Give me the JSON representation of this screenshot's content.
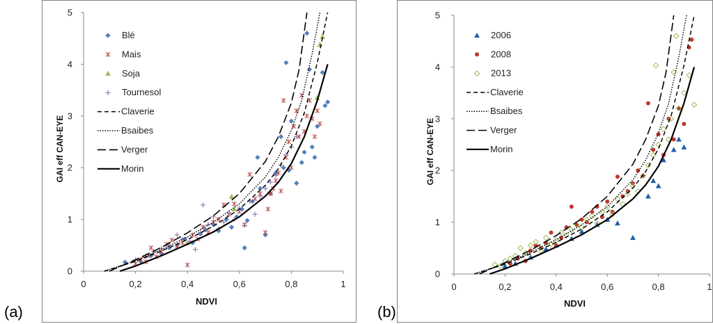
{
  "panels": [
    {
      "label": "(a)"
    },
    {
      "label": "(b)"
    }
  ],
  "chart_data": [
    {
      "type": "scatter",
      "title": "",
      "xlabel": "NDVI",
      "ylabel": "GAI eff CAN-EYE",
      "xlim": [
        0,
        1
      ],
      "ylim": [
        0,
        5
      ],
      "x_ticks": [
        "0",
        "0,2",
        "0,4",
        "0,6",
        "0,8",
        "1"
      ],
      "y_ticks": [
        "0",
        "1",
        "2",
        "3",
        "4",
        "5"
      ],
      "grid": false,
      "legend_position": "top-left",
      "series": [
        {
          "name": "Blé",
          "marker": "diamond",
          "color": "#4f81bd",
          "x": [
            0.16,
            0.22,
            0.26,
            0.3,
            0.33,
            0.36,
            0.39,
            0.42,
            0.45,
            0.47,
            0.5,
            0.52,
            0.55,
            0.57,
            0.59,
            0.61,
            0.62,
            0.63,
            0.65,
            0.67,
            0.68,
            0.7,
            0.72,
            0.74,
            0.76,
            0.77,
            0.78,
            0.79,
            0.8,
            0.82,
            0.84,
            0.85,
            0.86,
            0.87,
            0.88,
            0.89,
            0.9,
            0.92,
            0.93,
            0.94
          ],
          "y": [
            0.17,
            0.19,
            0.3,
            0.34,
            0.45,
            0.5,
            0.62,
            0.55,
            0.72,
            0.8,
            0.9,
            0.78,
            1.0,
            0.85,
            1.05,
            1.2,
            0.45,
            0.98,
            1.35,
            2.2,
            1.6,
            0.7,
            1.5,
            1.9,
            2.6,
            2.0,
            4.03,
            1.95,
            2.9,
            1.7,
            2.1,
            2.3,
            4.6,
            3.9,
            2.4,
            2.2,
            2.8,
            3.84,
            3.2,
            3.27
          ]
        },
        {
          "name": "Mais",
          "marker": "x",
          "color": "#c0504d",
          "x": [
            0.2,
            0.22,
            0.24,
            0.25,
            0.26,
            0.28,
            0.3,
            0.32,
            0.34,
            0.36,
            0.38,
            0.4,
            0.42,
            0.44,
            0.46,
            0.48,
            0.5,
            0.52,
            0.54,
            0.56,
            0.58,
            0.6,
            0.62,
            0.64,
            0.66,
            0.68,
            0.7,
            0.71,
            0.72,
            0.73,
            0.74,
            0.75,
            0.76,
            0.77,
            0.78,
            0.79,
            0.8,
            0.81,
            0.82,
            0.83,
            0.84,
            0.85,
            0.86,
            0.87,
            0.88,
            0.89,
            0.9,
            0.91
          ],
          "y": [
            0.15,
            0.22,
            0.18,
            0.3,
            0.45,
            0.28,
            0.38,
            0.52,
            0.6,
            0.48,
            0.55,
            0.12,
            0.7,
            0.62,
            0.85,
            0.75,
            0.95,
            1.0,
            1.28,
            1.1,
            1.3,
            1.15,
            0.9,
            1.87,
            1.4,
            1.5,
            0.75,
            1.2,
            1.5,
            1.6,
            1.75,
            1.9,
            1.55,
            3.3,
            2.2,
            2.5,
            2.0,
            2.8,
            3.1,
            2.6,
            3.4,
            2.7,
            3.0,
            3.3,
            2.95,
            2.6,
            3.1,
            2.85
          ]
        },
        {
          "name": "Soja",
          "marker": "triangle",
          "color": "#9bbb59",
          "x": [
            0.4,
            0.57,
            0.58,
            0.9,
            0.91,
            0.92
          ],
          "y": [
            0.55,
            1.44,
            1.2,
            3.35,
            4.38,
            4.53
          ]
        },
        {
          "name": "Tournesol",
          "marker": "plus",
          "color": "#8064a2",
          "x": [
            0.16,
            0.2,
            0.24,
            0.27,
            0.3,
            0.33,
            0.36,
            0.38,
            0.41,
            0.43,
            0.45,
            0.46,
            0.48,
            0.5,
            0.52,
            0.54,
            0.56,
            0.58,
            0.6,
            0.62,
            0.64,
            0.66,
            0.68,
            0.7,
            0.72,
            0.74,
            0.76,
            0.78,
            0.8,
            0.82
          ],
          "y": [
            0.18,
            0.22,
            0.28,
            0.38,
            0.44,
            0.5,
            0.7,
            0.62,
            0.58,
            0.42,
            0.75,
            1.28,
            0.9,
            1.05,
            0.82,
            0.95,
            1.12,
            1.0,
            1.22,
            0.88,
            1.35,
            1.1,
            1.45,
            1.6,
            1.72,
            1.85,
            2.05,
            2.25,
            2.4,
            2.6
          ]
        }
      ],
      "curves": [
        {
          "name": "Claverie",
          "dash": "short-dash",
          "x": [
            0.08,
            0.2,
            0.3,
            0.4,
            0.5,
            0.6,
            0.7,
            0.75,
            0.8,
            0.85,
            0.9,
            0.94
          ],
          "y": [
            0.0,
            0.19,
            0.39,
            0.61,
            0.87,
            1.2,
            1.66,
            1.98,
            2.42,
            3.06,
            4.03,
            5.0
          ]
        },
        {
          "name": "Bsaibes",
          "dash": "dotted",
          "x": [
            0.08,
            0.2,
            0.3,
            0.4,
            0.5,
            0.6,
            0.7,
            0.75,
            0.8,
            0.84,
            0.88,
            0.91
          ],
          "y": [
            0.0,
            0.2,
            0.42,
            0.66,
            0.95,
            1.3,
            1.82,
            2.2,
            2.72,
            3.3,
            4.2,
            5.0
          ]
        },
        {
          "name": "Verger",
          "dash": "long-dash",
          "x": [
            0.1,
            0.2,
            0.3,
            0.4,
            0.5,
            0.6,
            0.7,
            0.75,
            0.8,
            0.83,
            0.86
          ],
          "y": [
            0.0,
            0.22,
            0.46,
            0.74,
            1.07,
            1.5,
            2.12,
            2.6,
            3.25,
            3.9,
            5.0
          ]
        },
        {
          "name": "Morin",
          "dash": "solid",
          "x": [
            0.14,
            0.2,
            0.3,
            0.4,
            0.5,
            0.6,
            0.7,
            0.75,
            0.8,
            0.85,
            0.9,
            0.94
          ],
          "y": [
            0.0,
            0.1,
            0.3,
            0.52,
            0.76,
            1.05,
            1.45,
            1.72,
            2.08,
            2.6,
            3.3,
            4.0
          ]
        }
      ]
    },
    {
      "type": "scatter",
      "title": "",
      "xlabel": "NDVI",
      "ylabel": "GAI eff CAN-EYE",
      "xlim": [
        0,
        1
      ],
      "ylim": [
        0,
        5
      ],
      "x_ticks": [
        "0",
        "0,2",
        "0,4",
        "0,6",
        "0,8",
        "1"
      ],
      "y_ticks": [
        "0",
        "1",
        "2",
        "3",
        "4",
        "5"
      ],
      "grid": false,
      "legend_position": "top-left",
      "series": [
        {
          "name": "2006",
          "marker": "triangle",
          "color": "#1f5fa8",
          "x": [
            0.2,
            0.24,
            0.3,
            0.36,
            0.4,
            0.46,
            0.5,
            0.56,
            0.6,
            0.64,
            0.7,
            0.76,
            0.78,
            0.8,
            0.82,
            0.86,
            0.88,
            0.9
          ],
          "y": [
            0.15,
            0.2,
            0.32,
            0.48,
            0.55,
            0.68,
            0.82,
            0.95,
            1.05,
            0.98,
            0.7,
            1.5,
            1.8,
            1.7,
            2.2,
            2.4,
            2.6,
            2.45
          ]
        },
        {
          "name": "2008",
          "marker": "circle",
          "color": "#c0392b",
          "x": [
            0.22,
            0.25,
            0.28,
            0.3,
            0.32,
            0.34,
            0.36,
            0.38,
            0.4,
            0.42,
            0.44,
            0.46,
            0.48,
            0.5,
            0.52,
            0.54,
            0.56,
            0.58,
            0.6,
            0.62,
            0.64,
            0.66,
            0.68,
            0.7,
            0.72,
            0.74,
            0.76,
            0.78,
            0.8,
            0.82,
            0.84,
            0.86,
            0.88,
            0.9,
            0.92,
            0.93
          ],
          "y": [
            0.2,
            0.3,
            0.25,
            0.45,
            0.55,
            0.5,
            0.6,
            0.8,
            0.55,
            0.7,
            0.9,
            1.3,
            0.95,
            1.05,
            1.0,
            1.2,
            1.3,
            1.1,
            1.4,
            1.2,
            1.88,
            1.5,
            1.6,
            1.75,
            2.0,
            1.9,
            3.3,
            2.4,
            2.7,
            2.3,
            3.0,
            2.6,
            3.2,
            2.9,
            4.38,
            4.53
          ]
        },
        {
          "name": "2013",
          "marker": "open-diamond",
          "color": "#9bbb59",
          "x": [
            0.16,
            0.18,
            0.2,
            0.22,
            0.24,
            0.26,
            0.28,
            0.3,
            0.32,
            0.34,
            0.36,
            0.38,
            0.4,
            0.42,
            0.44,
            0.46,
            0.48,
            0.5,
            0.52,
            0.54,
            0.56,
            0.58,
            0.6,
            0.62,
            0.64,
            0.66,
            0.68,
            0.7,
            0.72,
            0.74,
            0.76,
            0.78,
            0.79,
            0.8,
            0.82,
            0.84,
            0.85,
            0.86,
            0.87,
            0.88,
            0.9,
            0.92,
            0.94
          ],
          "y": [
            0.18,
            0.15,
            0.25,
            0.3,
            0.35,
            0.5,
            0.4,
            0.55,
            0.62,
            0.45,
            0.7,
            0.58,
            0.65,
            0.8,
            0.75,
            0.85,
            0.95,
            0.9,
            1.05,
            1.12,
            0.98,
            1.2,
            1.3,
            1.15,
            1.45,
            1.35,
            1.55,
            1.7,
            1.6,
            1.9,
            2.1,
            2.3,
            4.03,
            2.5,
            2.8,
            2.6,
            3.0,
            3.9,
            4.6,
            3.2,
            3.5,
            3.84,
            3.27
          ]
        }
      ],
      "curves": [
        {
          "name": "Claverie",
          "dash": "short-dash",
          "x": [
            0.08,
            0.2,
            0.3,
            0.4,
            0.5,
            0.6,
            0.7,
            0.75,
            0.8,
            0.85,
            0.9,
            0.94
          ],
          "y": [
            0.0,
            0.19,
            0.39,
            0.61,
            0.87,
            1.2,
            1.66,
            1.98,
            2.42,
            3.06,
            4.03,
            5.0
          ]
        },
        {
          "name": "Bsaibes",
          "dash": "dotted",
          "x": [
            0.08,
            0.2,
            0.3,
            0.4,
            0.5,
            0.6,
            0.7,
            0.75,
            0.8,
            0.84,
            0.88,
            0.91
          ],
          "y": [
            0.0,
            0.2,
            0.42,
            0.66,
            0.95,
            1.3,
            1.82,
            2.2,
            2.72,
            3.3,
            4.2,
            5.0
          ]
        },
        {
          "name": "Verger",
          "dash": "long-dash",
          "x": [
            0.1,
            0.2,
            0.3,
            0.4,
            0.5,
            0.6,
            0.7,
            0.75,
            0.8,
            0.83,
            0.86
          ],
          "y": [
            0.0,
            0.22,
            0.46,
            0.74,
            1.07,
            1.5,
            2.12,
            2.6,
            3.25,
            3.9,
            5.0
          ]
        },
        {
          "name": "Morin",
          "dash": "solid",
          "x": [
            0.14,
            0.2,
            0.3,
            0.4,
            0.5,
            0.6,
            0.7,
            0.75,
            0.8,
            0.85,
            0.9,
            0.94
          ],
          "y": [
            0.0,
            0.1,
            0.3,
            0.52,
            0.76,
            1.05,
            1.45,
            1.72,
            2.08,
            2.6,
            3.3,
            4.0
          ]
        }
      ]
    }
  ]
}
